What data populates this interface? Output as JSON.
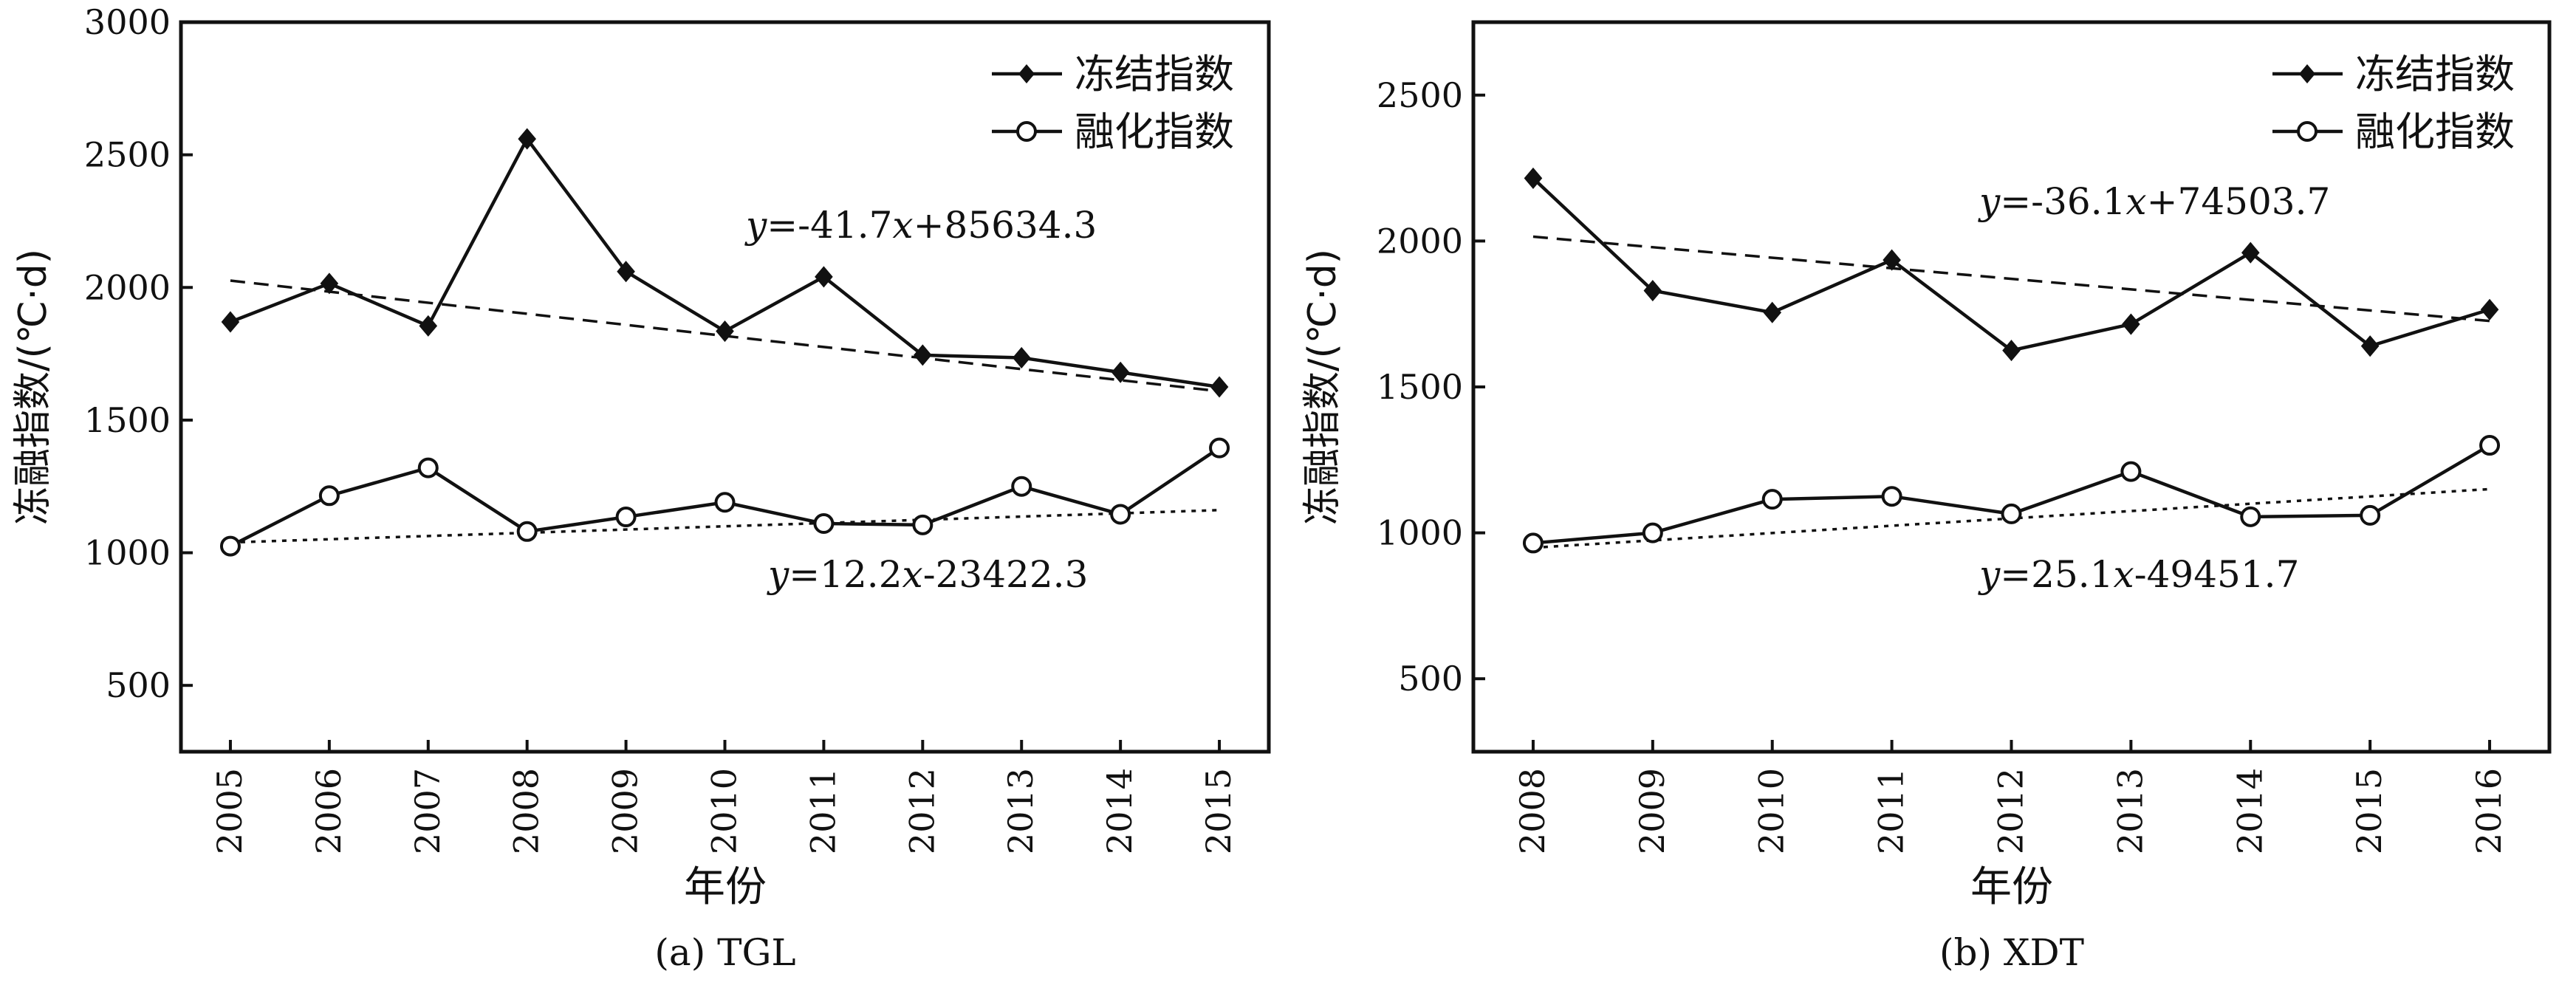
{
  "chart_data": [
    {
      "type": "line",
      "caption": "(a) TGL",
      "xlabel": "年份",
      "ylabel": "冻融指数/(℃·d)",
      "ylim": [
        250,
        3000
      ],
      "yticks": [
        500,
        1000,
        1500,
        2000,
        2500,
        3000
      ],
      "categories": [
        "2005",
        "2006",
        "2007",
        "2008",
        "2009",
        "2010",
        "2011",
        "2012",
        "2013",
        "2014",
        "2015"
      ],
      "series": [
        {
          "name": "冻结指数",
          "marker": "filled-diamond",
          "values": [
            1870,
            2015,
            1855,
            2560,
            2060,
            1835,
            2040,
            1745,
            1735,
            1680,
            1625
          ]
        },
        {
          "name": "融化指数",
          "marker": "open-circle",
          "values": [
            1025,
            1215,
            1320,
            1080,
            1135,
            1190,
            1110,
            1105,
            1250,
            1145,
            1395
          ]
        }
      ],
      "trendlines": [
        {
          "series": "冻结指数",
          "style": "dashed",
          "slope": -41.7,
          "intercept": 85634.3,
          "equation": "y=-41.7x+85634.3"
        },
        {
          "series": "融化指数",
          "style": "dotted",
          "slope": 12.2,
          "intercept": -23422.3,
          "equation": "y=12.2x-23422.3"
        }
      ],
      "legend_position": "top-right",
      "grid": false
    },
    {
      "type": "line",
      "caption": "(b) XDT",
      "xlabel": "年份",
      "ylabel": "冻融指数/(℃·d)",
      "ylim": [
        250,
        2750
      ],
      "yticks": [
        500,
        1000,
        1500,
        2000,
        2500
      ],
      "categories": [
        "2008",
        "2009",
        "2010",
        "2011",
        "2012",
        "2013",
        "2014",
        "2015",
        "2016"
      ],
      "series": [
        {
          "name": "冻结指数",
          "marker": "filled-diamond",
          "values": [
            2215,
            1830,
            1755,
            1935,
            1625,
            1715,
            1960,
            1640,
            1765
          ]
        },
        {
          "name": "融化指数",
          "marker": "open-circle",
          "values": [
            965,
            1000,
            1115,
            1125,
            1065,
            1210,
            1055,
            1060,
            1300
          ]
        }
      ],
      "trendlines": [
        {
          "series": "冻结指数",
          "style": "dashed",
          "slope": -36.1,
          "intercept": 74503.7,
          "equation": "y=-36.1x+74503.7"
        },
        {
          "series": "融化指数",
          "style": "dotted",
          "slope": 25.1,
          "intercept": -49451.7,
          "equation": "y=25.1x-49451.7"
        }
      ],
      "legend_position": "top-right",
      "grid": false
    }
  ]
}
